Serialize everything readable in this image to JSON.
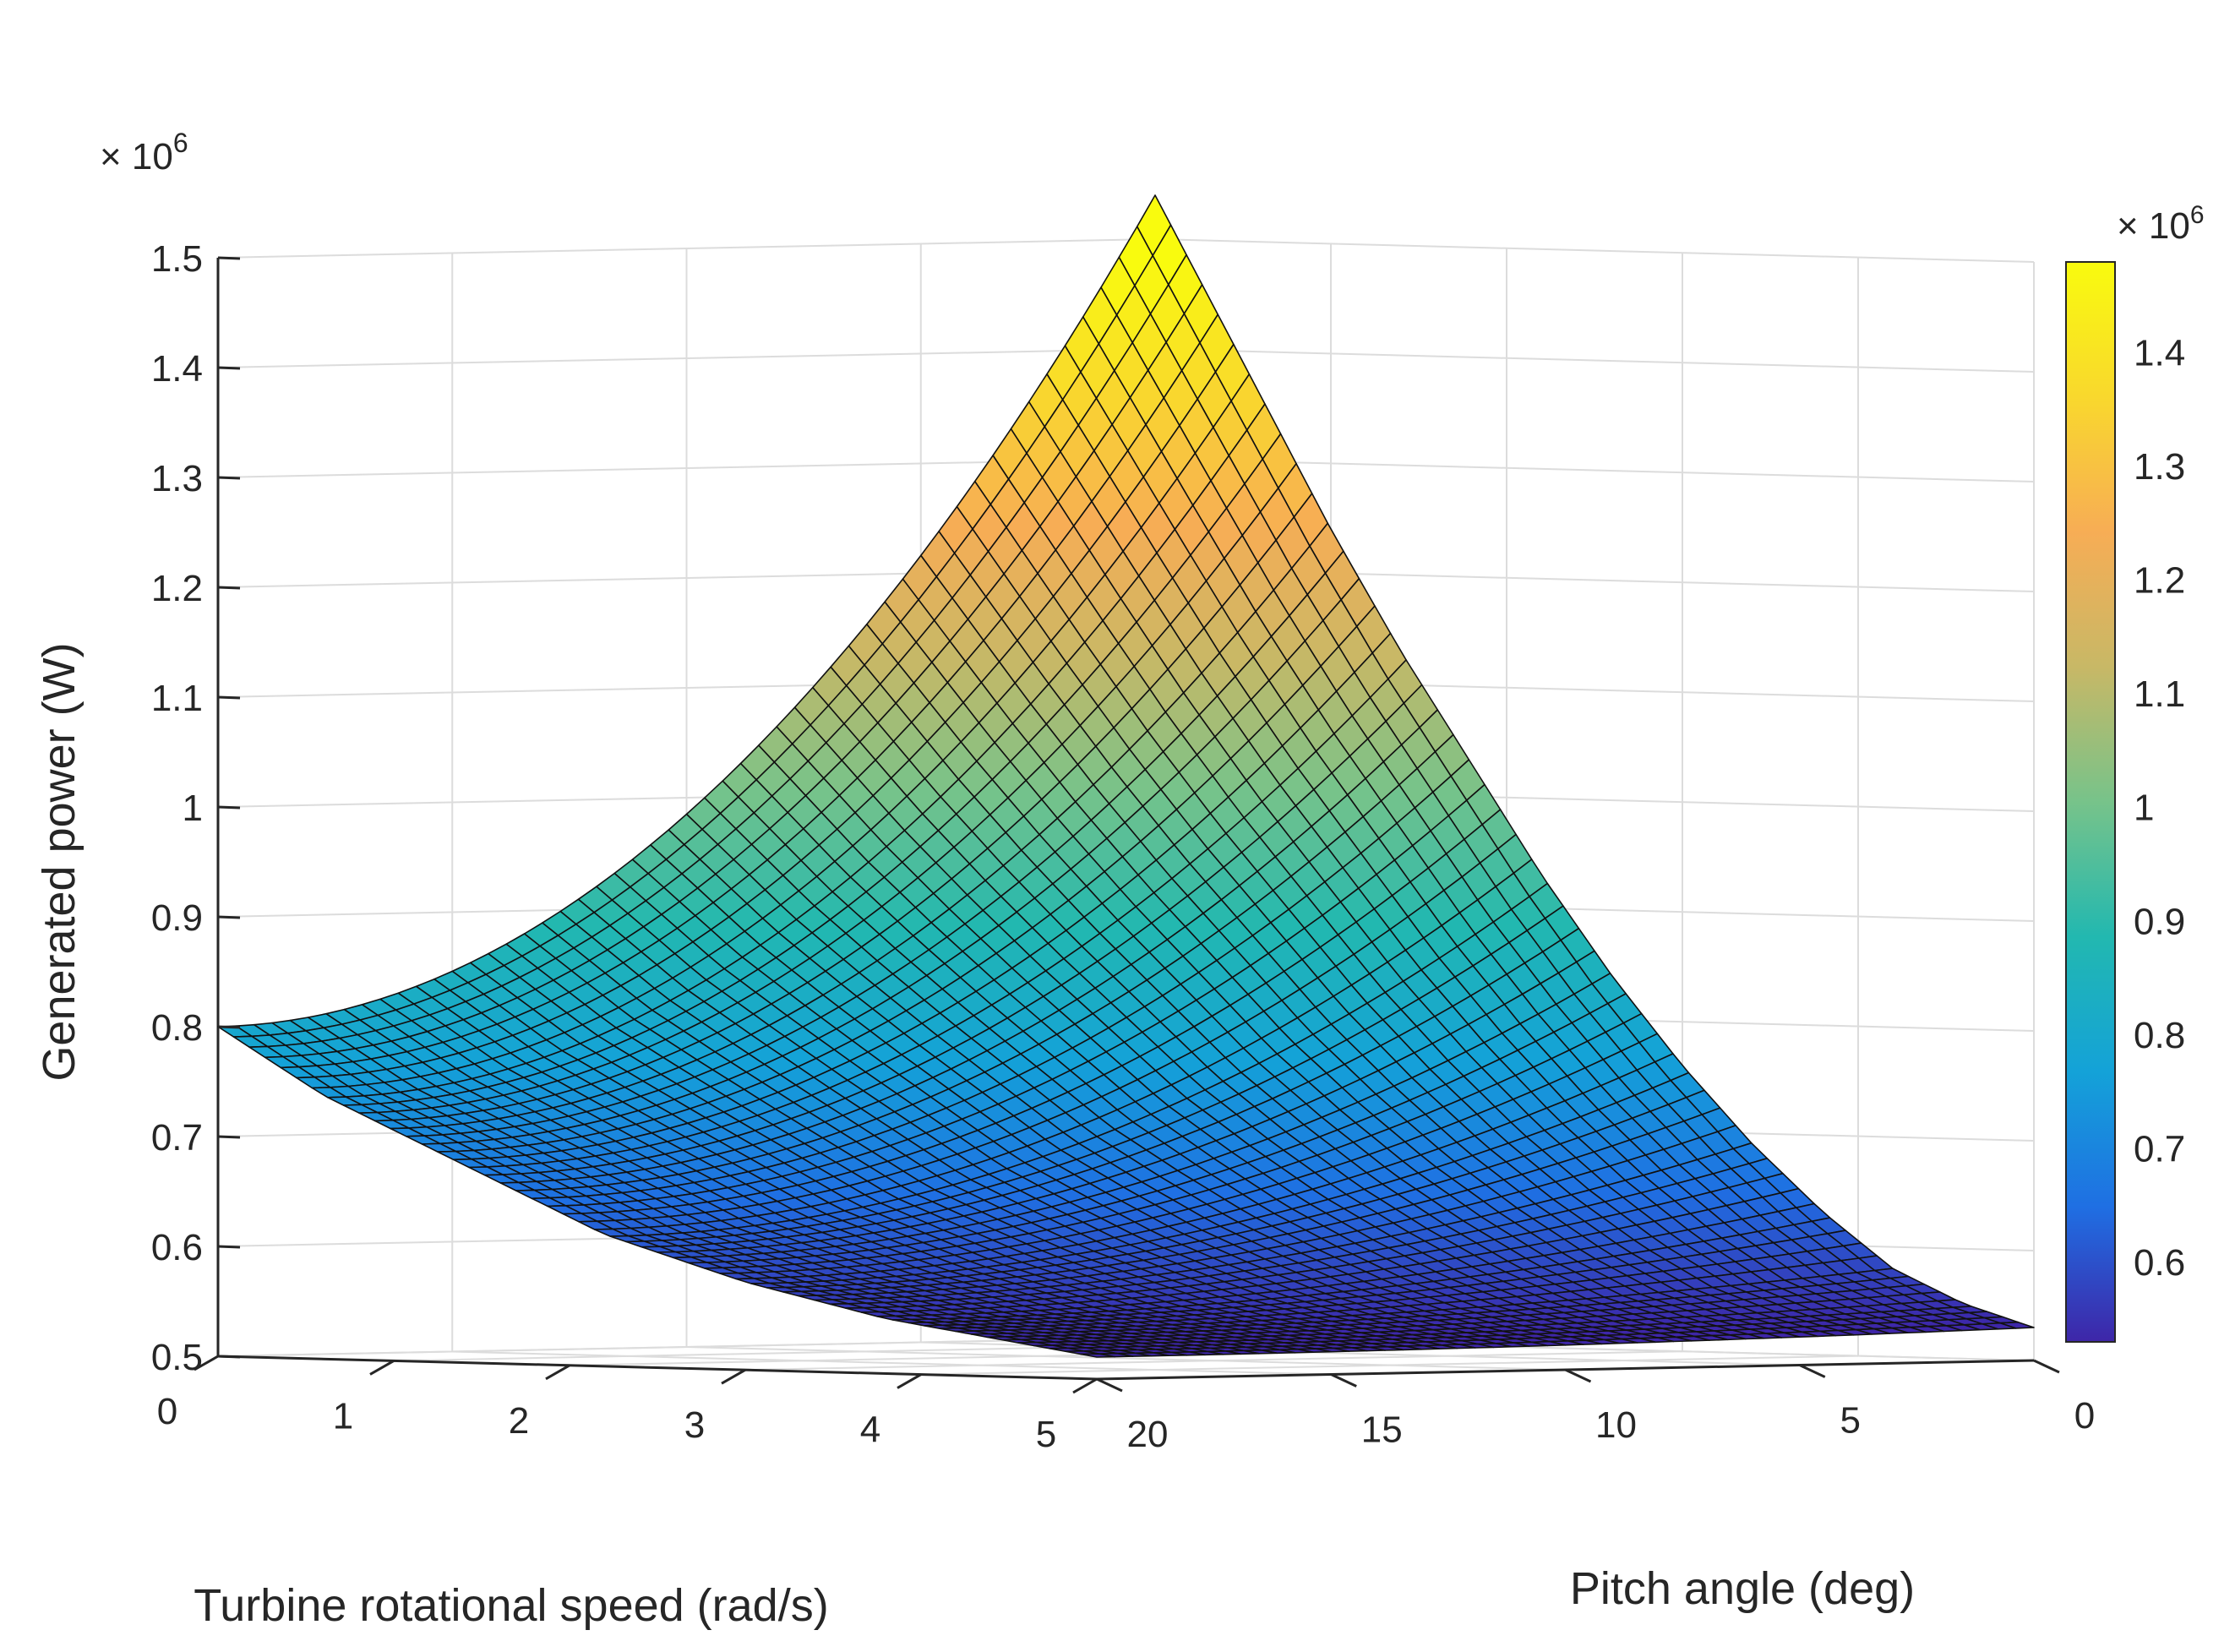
{
  "chart_data": {
    "type": "surface",
    "title": "",
    "x": {
      "label": "Turbine rotational speed (rad/s)",
      "range": [
        0,
        5
      ],
      "ticks": [
        0,
        1,
        2,
        3,
        4,
        5
      ],
      "tick_labels": [
        "0",
        "1",
        "2",
        "3",
        "4",
        "5"
      ]
    },
    "y": {
      "label": "Pitch angle (deg)",
      "range": [
        0,
        20
      ],
      "ticks": [
        0,
        5,
        10,
        15,
        20
      ],
      "tick_labels": [
        "0",
        "5",
        "10",
        "15",
        "20"
      ]
    },
    "z": {
      "label": "Generated power (W)",
      "range": [
        0.5,
        1.5
      ],
      "ticks": [
        0.5,
        0.6,
        0.7,
        0.8,
        0.9,
        1.0,
        1.1,
        1.2,
        1.3,
        1.4,
        1.5
      ],
      "tick_labels": [
        "0.5",
        "0.6",
        "0.7",
        "0.8",
        "0.9",
        "1",
        "1.1",
        "1.2",
        "1.3",
        "1.4",
        "1.5"
      ],
      "multiplier_base": "× 10",
      "multiplier_exp": "6"
    },
    "surface": {
      "x_samples": [
        0.2,
        0.6,
        1.0,
        1.4,
        1.8,
        2.2,
        2.6,
        3.0,
        3.4,
        3.8,
        4.2,
        4.6,
        5.0
      ],
      "power_at_pitch_0": [
        1.48,
        1.36,
        1.24,
        1.13,
        1.03,
        0.93,
        0.84,
        0.76,
        0.69,
        0.63,
        0.58,
        0.55,
        0.53
      ],
      "power_at_pitch_20": [
        0.78,
        0.74,
        0.71,
        0.68,
        0.65,
        0.62,
        0.6,
        0.58,
        0.565,
        0.55,
        0.54,
        0.53,
        0.52
      ],
      "pitch_dependence": "parabolic, rising steeply toward pitch 0"
    },
    "grid": true,
    "colormap": [
      "#3e26a8",
      "#1f6fe3",
      "#14a2d8",
      "#22b8b0",
      "#77c38a",
      "#c8b866",
      "#f7ad55",
      "#f9d82d",
      "#f9fb0e"
    ],
    "colorbar": {
      "ticks": [
        0.6,
        0.7,
        0.8,
        0.9,
        1.0,
        1.1,
        1.2,
        1.3,
        1.4
      ],
      "tick_labels": [
        "0.6",
        "0.7",
        "0.8",
        "0.9",
        "1",
        "1.1",
        "1.2",
        "1.3",
        "1.4"
      ],
      "range": [
        0.53,
        1.48
      ],
      "multiplier_base": "× 10",
      "multiplier_exp": "6"
    }
  }
}
